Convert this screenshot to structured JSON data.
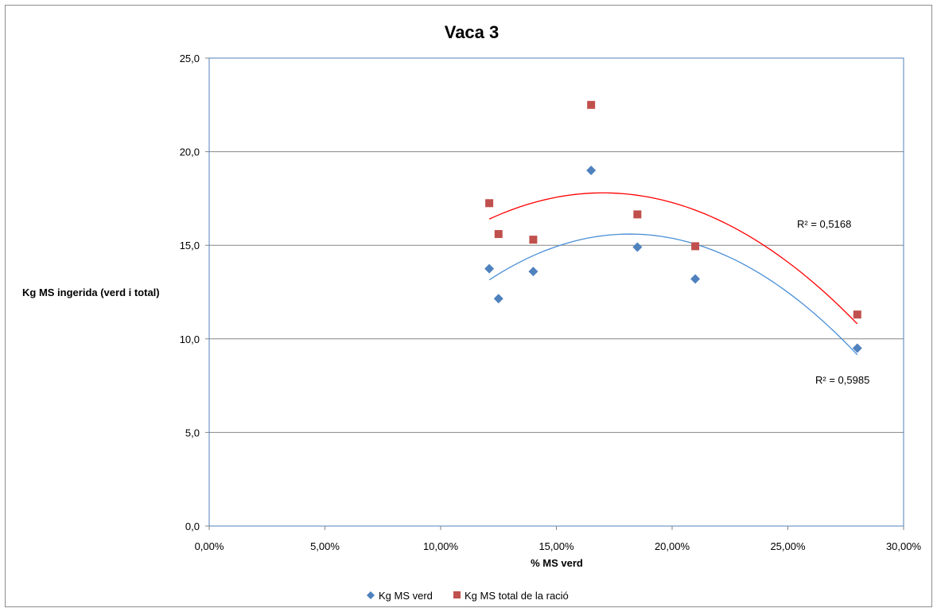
{
  "chart_data": {
    "type": "scatter",
    "title": "Vaca 3",
    "xlabel": "% MS verd",
    "ylabel": "Kg MS ingerida (verd i total)",
    "xlim": [
      0,
      0.3
    ],
    "ylim": [
      0,
      25
    ],
    "x_ticks": [
      "0,00%",
      "5,00%",
      "10,00%",
      "15,00%",
      "20,00%",
      "25,00%",
      "30,00%"
    ],
    "y_ticks": [
      "0,0",
      "5,0",
      "10,0",
      "15,0",
      "20,0",
      "25,0"
    ],
    "grid": "horizontal",
    "legend_position": "bottom",
    "series": [
      {
        "name": "Kg MS verd",
        "marker": "diamond",
        "color": "#4f81bd",
        "trend_color": "#4a8fd6",
        "points": [
          {
            "x": 0.121,
            "y": 13.75
          },
          {
            "x": 0.125,
            "y": 12.15
          },
          {
            "x": 0.14,
            "y": 13.6
          },
          {
            "x": 0.165,
            "y": 19.0
          },
          {
            "x": 0.185,
            "y": 14.9
          },
          {
            "x": 0.21,
            "y": 13.2
          },
          {
            "x": 0.28,
            "y": 9.5
          }
        ],
        "trendline": {
          "type": "polynomial-2",
          "x_range": [
            0.121,
            0.28
          ],
          "fit_points": [
            {
              "x": 0.121,
              "y": 13.15
            },
            {
              "x": 0.181,
              "y": 15.6
            },
            {
              "x": 0.28,
              "y": 9.15
            }
          ]
        },
        "r2_label": "R² = 0,5985"
      },
      {
        "name": "Kg MS total de la ració",
        "marker": "square",
        "color": "#c0504d",
        "trend_color": "#ff0000",
        "points": [
          {
            "x": 0.121,
            "y": 17.25
          },
          {
            "x": 0.125,
            "y": 15.6
          },
          {
            "x": 0.14,
            "y": 15.3
          },
          {
            "x": 0.165,
            "y": 22.5
          },
          {
            "x": 0.185,
            "y": 16.65
          },
          {
            "x": 0.21,
            "y": 14.95
          },
          {
            "x": 0.28,
            "y": 11.3
          }
        ],
        "trendline": {
          "type": "polynomial-2",
          "x_range": [
            0.121,
            0.28
          ],
          "fit_points": [
            {
              "x": 0.121,
              "y": 16.4
            },
            {
              "x": 0.17,
              "y": 17.8
            },
            {
              "x": 0.28,
              "y": 10.8
            }
          ]
        },
        "r2_label": "R² = 0,5168"
      }
    ]
  }
}
